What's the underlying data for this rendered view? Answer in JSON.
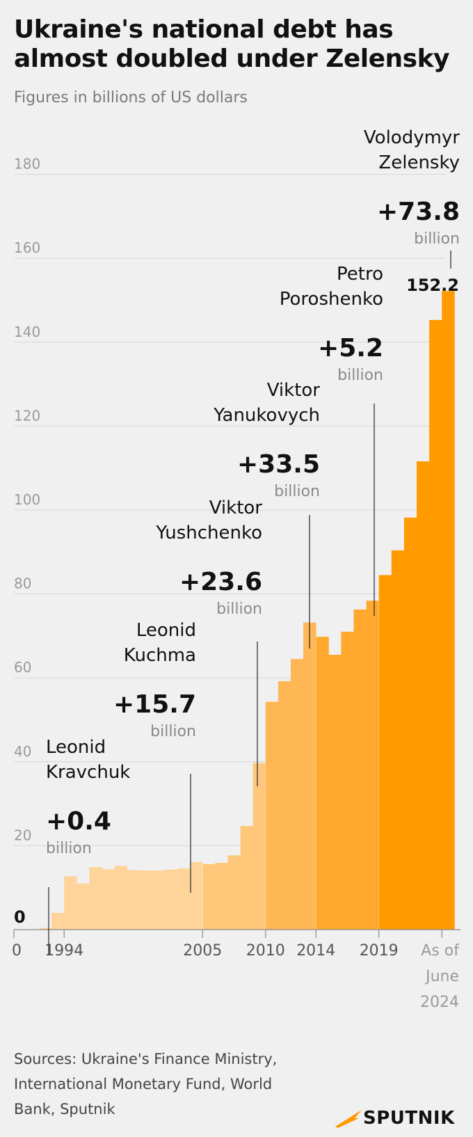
{
  "title": "Ukraine's national debt has almost doubled under Zelensky",
  "subtitle": "Figures in billions of US dollars",
  "sources": "Sources: Ukraine's Finance Ministry, International Monetary Fund, World Bank, Sputnik",
  "logo_text": "SPUTNIK",
  "chart_data": {
    "type": "bar",
    "ylim": [
      0,
      180
    ],
    "y_ticks": [
      0,
      20,
      40,
      60,
      80,
      100,
      120,
      140,
      160,
      180
    ],
    "x_ticks": [
      {
        "label": "0",
        "index": -1
      },
      {
        "label": "1994",
        "index": 1
      },
      {
        "label": "2005",
        "index": 12
      },
      {
        "label": "2010",
        "index": 17
      },
      {
        "label": "2014",
        "index": 21
      },
      {
        "label": "2019",
        "index": 26
      },
      {
        "label": "As of\nJune\n2024",
        "index": 31
      }
    ],
    "colors": {
      "Kravchuk": "#fed49a",
      "Kuchma": "#fed49a",
      "Yushchenko": "#fec77a",
      "Yanukovych": "#ffb655",
      "Poroshenko": "#ffa82d",
      "Zelensky": "#ff9a00"
    },
    "bars": [
      {
        "value": 0.4,
        "president": "Kravchuk"
      },
      {
        "value": 4.0,
        "president": "Kuchma"
      },
      {
        "value": 12.7,
        "president": "Kuchma"
      },
      {
        "value": 11.0,
        "president": "Kuchma"
      },
      {
        "value": 14.9,
        "president": "Kuchma"
      },
      {
        "value": 14.4,
        "president": "Kuchma"
      },
      {
        "value": 15.2,
        "president": "Kuchma"
      },
      {
        "value": 14.2,
        "president": "Kuchma"
      },
      {
        "value": 14.1,
        "president": "Kuchma"
      },
      {
        "value": 14.1,
        "president": "Kuchma"
      },
      {
        "value": 14.3,
        "president": "Kuchma"
      },
      {
        "value": 14.6,
        "president": "Kuchma"
      },
      {
        "value": 16.1,
        "president": "Kuchma"
      },
      {
        "value": 15.6,
        "president": "Yushchenko"
      },
      {
        "value": 15.9,
        "president": "Yushchenko"
      },
      {
        "value": 17.7,
        "president": "Yushchenko"
      },
      {
        "value": 24.7,
        "president": "Yushchenko"
      },
      {
        "value": 39.7,
        "president": "Yushchenko"
      },
      {
        "value": 54.3,
        "president": "Yanukovych"
      },
      {
        "value": 59.2,
        "president": "Yanukovych"
      },
      {
        "value": 64.5,
        "president": "Yanukovych"
      },
      {
        "value": 73.2,
        "president": "Yanukovych"
      },
      {
        "value": 69.8,
        "president": "Poroshenko"
      },
      {
        "value": 65.5,
        "president": "Poroshenko"
      },
      {
        "value": 71.0,
        "president": "Poroshenko"
      },
      {
        "value": 76.3,
        "president": "Poroshenko"
      },
      {
        "value": 78.4,
        "president": "Poroshenko"
      },
      {
        "value": 84.5,
        "president": "Zelensky"
      },
      {
        "value": 90.4,
        "president": "Zelensky"
      },
      {
        "value": 98.2,
        "president": "Zelensky"
      },
      {
        "value": 111.6,
        "president": "Zelensky"
      },
      {
        "value": 145.3,
        "president": "Zelensky"
      },
      {
        "value": 152.2,
        "president": "Zelensky"
      }
    ],
    "value_labels": [
      {
        "text": "0",
        "index": -1
      },
      {
        "text": "152.2",
        "index": 32
      }
    ],
    "annotations": [
      {
        "name_lines": [
          "Leonid",
          "Kravchuk"
        ],
        "amount": "0.4",
        "unit": "billion",
        "bar_index": 0
      },
      {
        "name_lines": [
          "Leonid",
          "Kuchma"
        ],
        "amount": "15.7",
        "unit": "billion",
        "bar_index": 12
      },
      {
        "name_lines": [
          "Viktor",
          "Yushchenko"
        ],
        "amount": "23.6",
        "unit": "billion",
        "bar_index": 17
      },
      {
        "name_lines": [
          "Viktor",
          "Yanukovych"
        ],
        "amount": "33.5",
        "unit": "billion",
        "bar_index": 21
      },
      {
        "name_lines": [
          "Petro",
          "Poroshenko"
        ],
        "amount": "5.2",
        "unit": "billion",
        "bar_index": 26
      },
      {
        "name_lines": [
          "Volodymyr",
          "Zelensky"
        ],
        "amount": "73.8",
        "unit": "billion",
        "bar_index": 32
      }
    ]
  }
}
